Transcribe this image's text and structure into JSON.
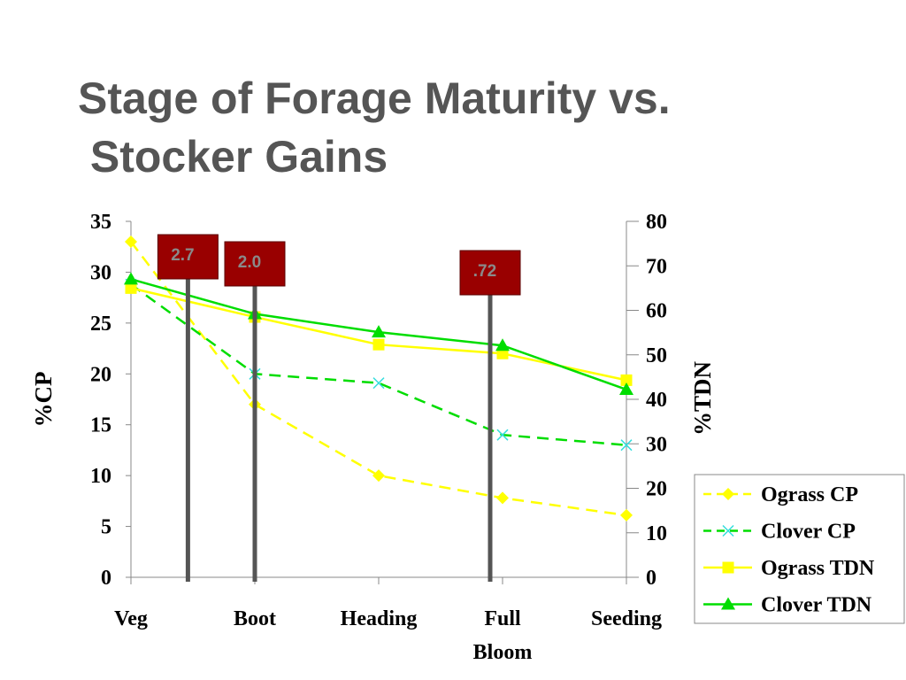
{
  "title": {
    "line1": "Stage of Forage Maturity vs.",
    "line2": " Stocker Gains"
  },
  "chart_data": {
    "type": "line",
    "categories": [
      {
        "line1": "Veg",
        "line2": ""
      },
      {
        "line1": "Boot",
        "line2": ""
      },
      {
        "line1": "Heading",
        "line2": ""
      },
      {
        "line1": "Full",
        "line2": "Bloom"
      },
      {
        "line1": "Seeding",
        "line2": ""
      }
    ],
    "ylabel_left": "%CP",
    "ylabel_right": "%TDN",
    "ylim_left": [
      0,
      35
    ],
    "yticks_left": [
      "0",
      "5",
      "10",
      "15",
      "20",
      "25",
      "30",
      "35"
    ],
    "ylim_right": [
      0,
      80
    ],
    "yticks_right": [
      "0",
      "10",
      "20",
      "30",
      "40",
      "50",
      "60",
      "70",
      "80"
    ],
    "grid": false,
    "legend_position": "bottom-right",
    "series": [
      {
        "name": "Ograss CP",
        "axis": "left",
        "values": [
          33,
          17,
          10,
          7.8,
          6.1
        ],
        "color": "#FFFF00",
        "dash": true,
        "marker": "diamond"
      },
      {
        "name": "Clover CP",
        "axis": "left",
        "values": [
          28.8,
          20,
          19.1,
          14,
          13
        ],
        "color": "#00DD00",
        "marker_color": "#33DDDD",
        "dash": true,
        "marker": "x"
      },
      {
        "name": "Ograss TDN",
        "axis": "right",
        "values": [
          65,
          58.5,
          52.3,
          50.3,
          44.3
        ],
        "color": "#FFFF00",
        "dash": false,
        "marker": "square"
      },
      {
        "name": "Clover TDN",
        "axis": "right",
        "values": [
          67,
          59.2,
          55.1,
          52.1,
          42.2
        ],
        "color": "#00DD00",
        "dash": false,
        "marker": "triangle"
      }
    ],
    "annotations": [
      {
        "label": "2.7",
        "x_category_pos": 0.46
      },
      {
        "label": "2.0",
        "x_category_pos": 1.0
      },
      {
        "label": ".72",
        "x_category_pos": 2.9
      }
    ],
    "annotation_colors": {
      "flag": "#990000",
      "text": "#8a8a8a",
      "pole": "#555555"
    }
  }
}
